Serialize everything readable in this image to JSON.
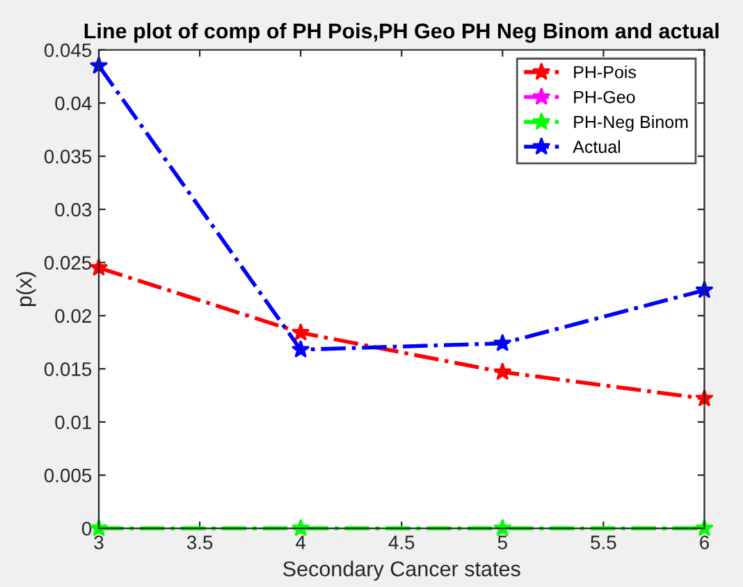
{
  "chart_data": {
    "type": "line",
    "title": "Line plot of comp of PH Pois,PH Geo PH Neg Binom and actual",
    "xlabel": "Secondary Cancer states",
    "ylabel": "p(x)",
    "x": [
      3,
      4,
      5,
      6
    ],
    "series": [
      {
        "name": "PH-Pois",
        "color": "#ff0000",
        "values": [
          0.0245,
          0.0184,
          0.0147,
          0.0122
        ]
      },
      {
        "name": "PH-Geo",
        "color": "#ff00ff",
        "values": [
          null,
          null,
          null,
          null
        ]
      },
      {
        "name": "PH-Neg Binom",
        "color": "#00ff00",
        "values": [
          0,
          0,
          0,
          0
        ]
      },
      {
        "name": "Actual",
        "color": "#0000ff",
        "values": [
          0.0435,
          0.0168,
          0.0174,
          0.0224
        ]
      }
    ],
    "xlim": [
      3,
      6
    ],
    "xticks": [
      3,
      3.5,
      4,
      4.5,
      5,
      5.5,
      6
    ],
    "ylim": [
      0,
      0.045
    ],
    "yticks": [
      0,
      0.005,
      0.01,
      0.015,
      0.02,
      0.025,
      0.03,
      0.035,
      0.04,
      0.045
    ],
    "grid": false,
    "legend": "top right",
    "marker": "star",
    "line_style": "dashdot"
  }
}
